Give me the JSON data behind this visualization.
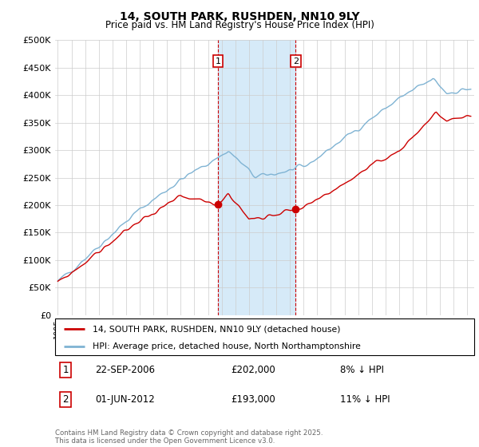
{
  "title": "14, SOUTH PARK, RUSHDEN, NN10 9LY",
  "subtitle": "Price paid vs. HM Land Registry's House Price Index (HPI)",
  "ylabel_ticks": [
    "£0",
    "£50K",
    "£100K",
    "£150K",
    "£200K",
    "£250K",
    "£300K",
    "£350K",
    "£400K",
    "£450K",
    "£500K"
  ],
  "ytick_vals": [
    0,
    50000,
    100000,
    150000,
    200000,
    250000,
    300000,
    350000,
    400000,
    450000,
    500000
  ],
  "ylim": [
    0,
    500000
  ],
  "xlim_start": 1994.8,
  "xlim_end": 2025.5,
  "sale1_date": 2006.73,
  "sale1_price": 202000,
  "sale2_date": 2012.42,
  "sale2_price": 193000,
  "shade_color": "#d6eaf8",
  "red_line_color": "#cc0000",
  "blue_line_color": "#7fb3d3",
  "legend1": "14, SOUTH PARK, RUSHDEN, NN10 9LY (detached house)",
  "legend2": "HPI: Average price, detached house, North Northamptonshire",
  "footer": "Contains HM Land Registry data © Crown copyright and database right 2025.\nThis data is licensed under the Open Government Licence v3.0.",
  "background_color": "#ffffff",
  "grid_color": "#cccccc",
  "vline_color": "#cc0000",
  "box_color": "#cc0000"
}
